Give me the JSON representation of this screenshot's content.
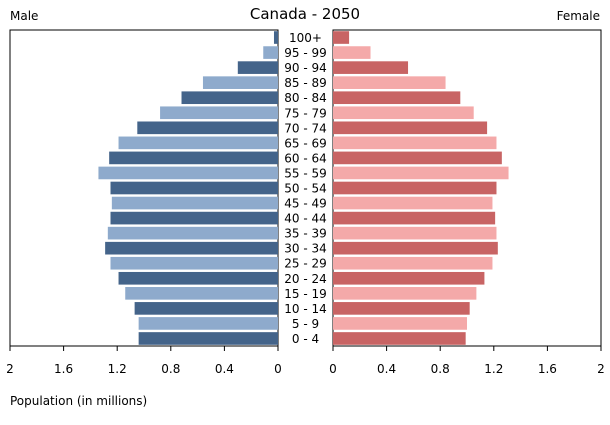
{
  "header": {
    "title": "Canada - 2050",
    "left_label": "Male",
    "right_label": "Female"
  },
  "footer": {
    "xlabel": "Population (in millions)"
  },
  "colors": {
    "male_dark": "#44648a",
    "male_light": "#8eaacc",
    "female_dark": "#c86464",
    "female_light": "#f4a9a9"
  },
  "chart_data": {
    "type": "bar",
    "orientation": "horizontal",
    "title": "Canada - 2050",
    "xlabel": "Population (in millions)",
    "categories": [
      "100+",
      "95 - 99",
      "90 - 94",
      "85 - 89",
      "80 - 84",
      "75 - 79",
      "70 - 74",
      "65 - 69",
      "60 - 64",
      "55 - 59",
      "50 - 54",
      "45 - 49",
      "40 - 44",
      "35 - 39",
      "30 - 34",
      "25 - 29",
      "20 - 24",
      "15 - 19",
      "10 - 14",
      "5 - 9",
      "0 - 4"
    ],
    "series": [
      {
        "name": "Male",
        "values": [
          0.03,
          0.11,
          0.3,
          0.56,
          0.72,
          0.88,
          1.05,
          1.19,
          1.26,
          1.34,
          1.25,
          1.24,
          1.25,
          1.27,
          1.29,
          1.25,
          1.19,
          1.14,
          1.07,
          1.04,
          1.04
        ]
      },
      {
        "name": "Female",
        "values": [
          0.12,
          0.28,
          0.56,
          0.84,
          0.95,
          1.05,
          1.15,
          1.22,
          1.26,
          1.31,
          1.22,
          1.19,
          1.21,
          1.22,
          1.23,
          1.19,
          1.13,
          1.07,
          1.02,
          1.0,
          0.99
        ]
      }
    ],
    "xticks_male": [
      "2",
      "1.6",
      "1.2",
      "0.8",
      "0.4",
      "0"
    ],
    "xticks_female": [
      "0",
      "0.4",
      "0.8",
      "1.2",
      "1.6",
      "2"
    ],
    "xlim": [
      0,
      2
    ],
    "grid": false,
    "legend": "none"
  }
}
